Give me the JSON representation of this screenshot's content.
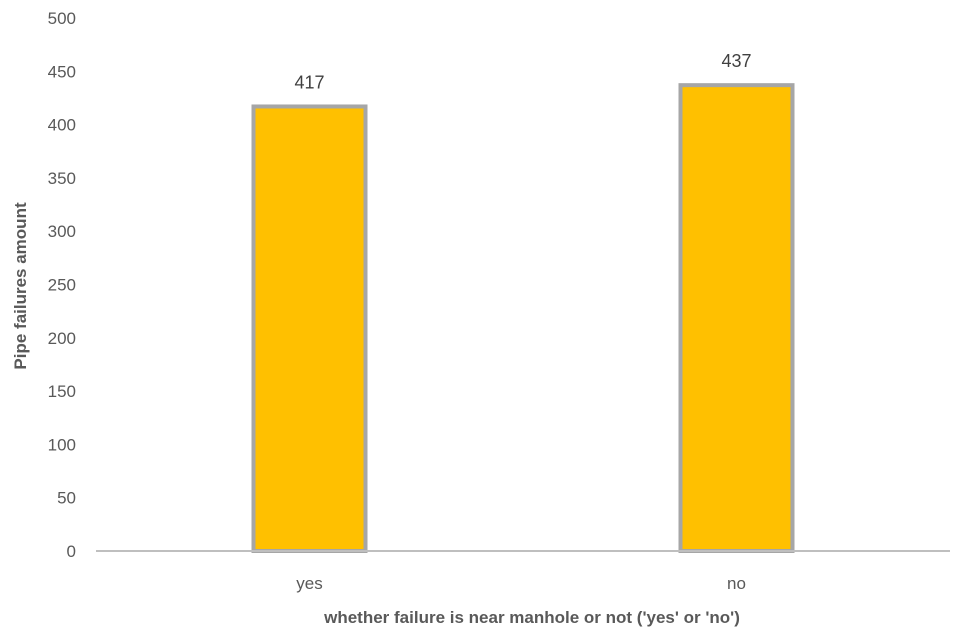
{
  "chart_data": {
    "type": "bar",
    "title": "",
    "xlabel": "whether failure is near manhole or not ('yes' or 'no')",
    "ylabel": "Pipe failures amount",
    "categories": [
      "yes",
      "no"
    ],
    "values": [
      417,
      437
    ],
    "data_labels": [
      "417",
      "437"
    ],
    "ylim": [
      0,
      500
    ],
    "yticks": [
      0,
      50,
      100,
      150,
      200,
      250,
      300,
      350,
      400,
      450,
      500
    ],
    "grid": false,
    "legend": "none",
    "bar_color": "#FFC000",
    "bar_edge_color": "#A6A6A6",
    "axis_color": "#BFBFBF"
  }
}
